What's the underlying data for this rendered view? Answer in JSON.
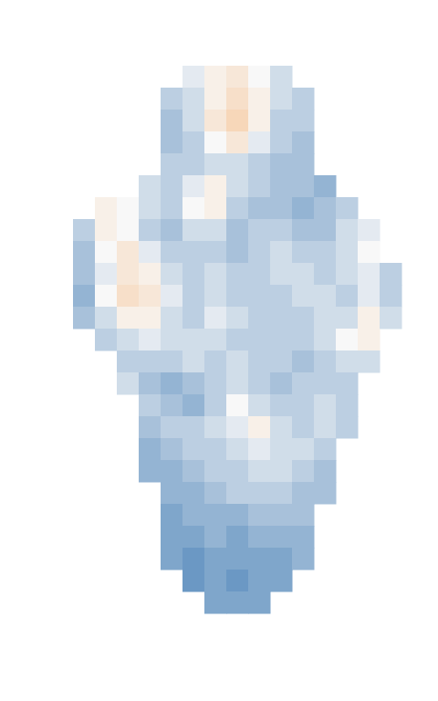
{
  "chart_data": {
    "type": "heatmap",
    "tick_labels": false,
    "zlim": [
      -1,
      1
    ],
    "cells": [
      [
        null,
        null,
        null,
        null,
        null,
        -0.1,
        0.1,
        0.2,
        0.0,
        -0.2,
        null,
        null,
        null,
        null,
        null
      ],
      [
        null,
        null,
        null,
        null,
        -0.3,
        -0.2,
        0.1,
        0.3,
        0.1,
        -0.2,
        -0.3,
        null,
        null,
        null,
        null
      ],
      [
        null,
        null,
        null,
        null,
        -0.4,
        -0.2,
        0.2,
        0.4,
        0.1,
        -0.3,
        -0.3,
        null,
        null,
        null,
        null
      ],
      [
        null,
        null,
        null,
        null,
        -0.4,
        -0.3,
        0.0,
        0.2,
        -0.1,
        -0.3,
        -0.4,
        null,
        null,
        null,
        null
      ],
      [
        null,
        null,
        null,
        null,
        -0.3,
        -0.3,
        -0.2,
        -0.2,
        -0.3,
        -0.4,
        -0.4,
        null,
        null,
        null,
        null
      ],
      [
        null,
        null,
        null,
        -0.2,
        -0.3,
        -0.1,
        0.1,
        -0.2,
        -0.3,
        -0.4,
        -0.4,
        -0.5,
        null,
        null,
        null
      ],
      [
        null,
        0.1,
        0.0,
        -0.2,
        -0.3,
        0.0,
        0.1,
        -0.3,
        -0.4,
        -0.4,
        -0.5,
        -0.4,
        -0.3,
        null,
        null
      ],
      [
        -0.3,
        0.1,
        0.0,
        -0.3,
        -0.4,
        -0.2,
        -0.2,
        -0.4,
        -0.3,
        -0.3,
        -0.4,
        -0.4,
        -0.2,
        -0.1,
        null
      ],
      [
        -0.4,
        0.0,
        0.2,
        -0.1,
        -0.3,
        -0.3,
        -0.3,
        -0.4,
        -0.3,
        -0.2,
        -0.3,
        -0.3,
        -0.2,
        0.0,
        null
      ],
      [
        -0.4,
        -0.1,
        0.2,
        0.1,
        -0.2,
        -0.3,
        -0.2,
        -0.3,
        -0.3,
        -0.2,
        -0.2,
        -0.3,
        -0.2,
        -0.1,
        -0.3
      ],
      [
        -0.5,
        0.0,
        0.3,
        0.2,
        -0.1,
        -0.3,
        -0.2,
        -0.3,
        -0.3,
        -0.3,
        -0.2,
        -0.2,
        -0.3,
        -0.1,
        -0.3
      ],
      [
        -0.4,
        -0.2,
        0.1,
        0.1,
        -0.2,
        -0.3,
        -0.1,
        -0.2,
        -0.3,
        -0.3,
        -0.3,
        -0.2,
        -0.2,
        0.1,
        -0.2
      ],
      [
        null,
        -0.3,
        -0.2,
        -0.1,
        -0.2,
        -0.2,
        -0.2,
        -0.3,
        -0.3,
        -0.3,
        -0.3,
        -0.2,
        0.0,
        0.1,
        null
      ],
      [
        null,
        null,
        -0.3,
        -0.3,
        -0.3,
        -0.2,
        -0.3,
        -0.2,
        -0.3,
        -0.3,
        -0.4,
        -0.3,
        -0.2,
        -0.2,
        null
      ],
      [
        null,
        null,
        -0.2,
        -0.4,
        -0.5,
        -0.4,
        -0.3,
        -0.2,
        -0.3,
        -0.4,
        -0.3,
        -0.3,
        -0.3,
        null,
        null
      ],
      [
        null,
        null,
        null,
        -0.3,
        -0.4,
        -0.5,
        -0.3,
        0.0,
        -0.2,
        -0.3,
        -0.3,
        -0.2,
        -0.3,
        null,
        null
      ],
      [
        null,
        null,
        null,
        -0.4,
        -0.3,
        -0.3,
        -0.2,
        -0.1,
        0.1,
        -0.2,
        -0.3,
        -0.2,
        -0.3,
        null,
        null
      ],
      [
        null,
        null,
        null,
        -0.5,
        -0.4,
        -0.3,
        -0.3,
        -0.2,
        -0.1,
        -0.2,
        -0.2,
        -0.3,
        null,
        null,
        null
      ],
      [
        null,
        null,
        null,
        -0.5,
        -0.5,
        -0.4,
        -0.3,
        -0.3,
        -0.2,
        -0.2,
        -0.3,
        -0.4,
        null,
        null,
        null
      ],
      [
        null,
        null,
        null,
        null,
        -0.5,
        -0.5,
        -0.4,
        -0.3,
        -0.3,
        -0.3,
        -0.4,
        -0.4,
        null,
        null,
        null
      ],
      [
        null,
        null,
        null,
        null,
        -0.6,
        -0.5,
        -0.5,
        -0.5,
        -0.4,
        -0.4,
        -0.4,
        null,
        null,
        null,
        null
      ],
      [
        null,
        null,
        null,
        null,
        -0.6,
        -0.6,
        -0.5,
        -0.6,
        -0.5,
        -0.5,
        -0.5,
        null,
        null,
        null,
        null
      ],
      [
        null,
        null,
        null,
        null,
        -0.6,
        -0.7,
        -0.6,
        -0.6,
        -0.6,
        -0.6,
        -0.5,
        null,
        null,
        null,
        null
      ],
      [
        null,
        null,
        null,
        null,
        null,
        -0.7,
        -0.6,
        -0.7,
        -0.6,
        -0.6,
        null,
        null,
        null,
        null,
        null
      ],
      [
        null,
        null,
        null,
        null,
        null,
        null,
        -0.6,
        -0.6,
        -0.6,
        null,
        null,
        null,
        null,
        null,
        null
      ]
    ]
  }
}
